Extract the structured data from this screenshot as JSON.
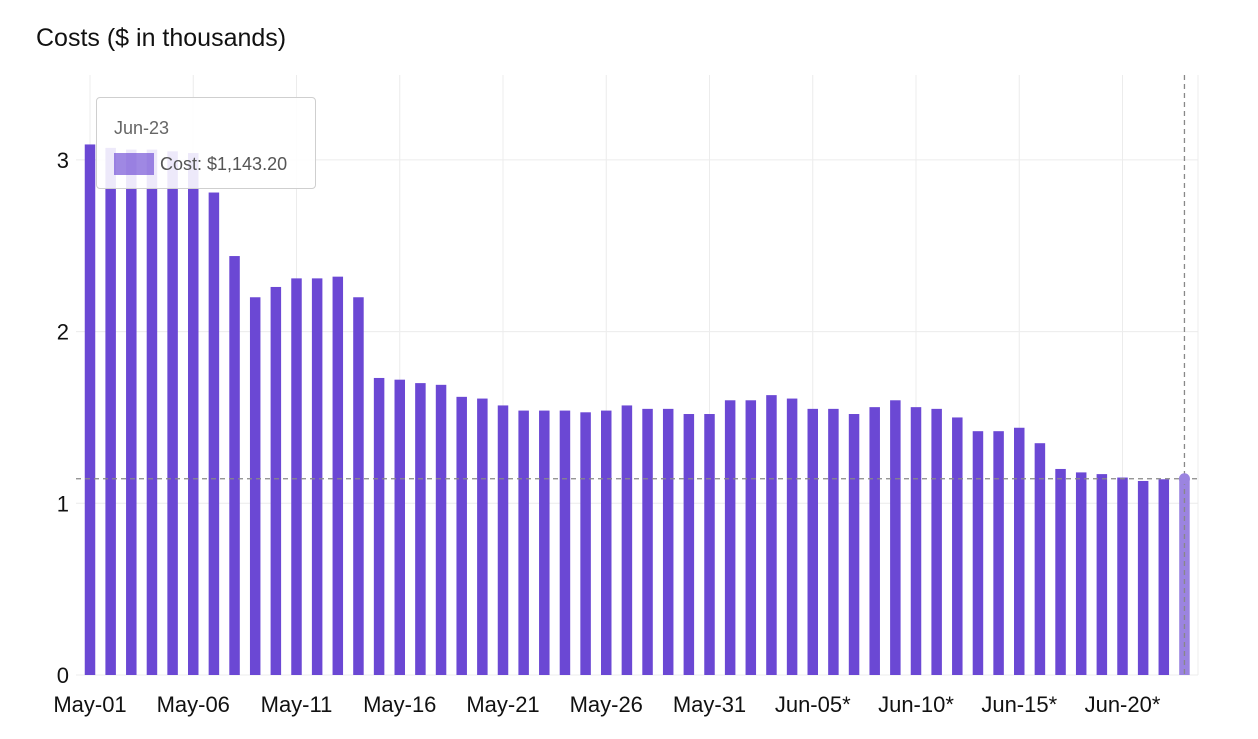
{
  "chart_data": {
    "type": "bar",
    "title": "Costs ($ in thousands)",
    "xlabel": "",
    "ylabel": "",
    "ylim": [
      0,
      3.5
    ],
    "yticks": [
      0,
      1,
      2,
      3
    ],
    "grid": true,
    "bar_color": "#6b48d4",
    "highlight_color": "#9b84e0",
    "reference_line_color": "#888888",
    "categories": [
      "May-01",
      "May-02",
      "May-03",
      "May-04",
      "May-05",
      "May-06",
      "May-07",
      "May-08",
      "May-09",
      "May-10",
      "May-11",
      "May-12",
      "May-13",
      "May-14",
      "May-15",
      "May-16",
      "May-17",
      "May-18",
      "May-19",
      "May-20",
      "May-21",
      "May-22",
      "May-23",
      "May-24",
      "May-25",
      "May-26",
      "May-27",
      "May-28",
      "May-29",
      "May-30",
      "May-31",
      "Jun-01",
      "Jun-02",
      "Jun-03",
      "Jun-04",
      "Jun-05*",
      "Jun-06*",
      "Jun-07*",
      "Jun-08*",
      "Jun-09*",
      "Jun-10*",
      "Jun-11*",
      "Jun-12*",
      "Jun-13*",
      "Jun-14*",
      "Jun-15*",
      "Jun-16*",
      "Jun-17*",
      "Jun-18*",
      "Jun-19*",
      "Jun-20*",
      "Jun-21*",
      "Jun-22*",
      "Jun-23"
    ],
    "tick_labels": [
      "May-01",
      "May-06",
      "May-11",
      "May-16",
      "May-21",
      "May-26",
      "May-31",
      "Jun-05*",
      "Jun-10*",
      "Jun-15*",
      "Jun-20*"
    ],
    "tick_every": 5,
    "values": [
      3.09,
      3.07,
      3.06,
      3.06,
      3.05,
      3.04,
      2.81,
      2.44,
      2.2,
      2.26,
      2.31,
      2.31,
      2.32,
      2.2,
      1.73,
      1.72,
      1.7,
      1.69,
      1.62,
      1.61,
      1.57,
      1.54,
      1.54,
      1.54,
      1.53,
      1.54,
      1.57,
      1.55,
      1.55,
      1.52,
      1.52,
      1.6,
      1.6,
      1.63,
      1.61,
      1.55,
      1.55,
      1.52,
      1.56,
      1.6,
      1.56,
      1.55,
      1.5,
      1.42,
      1.42,
      1.44,
      1.35,
      1.2,
      1.18,
      1.17,
      1.15,
      1.13,
      1.14,
      1.1432
    ],
    "highlight_index": 53,
    "reference_value": 1.1432
  },
  "tooltip": {
    "date": "Jun-23",
    "text": "Cost: $1,143.20"
  }
}
